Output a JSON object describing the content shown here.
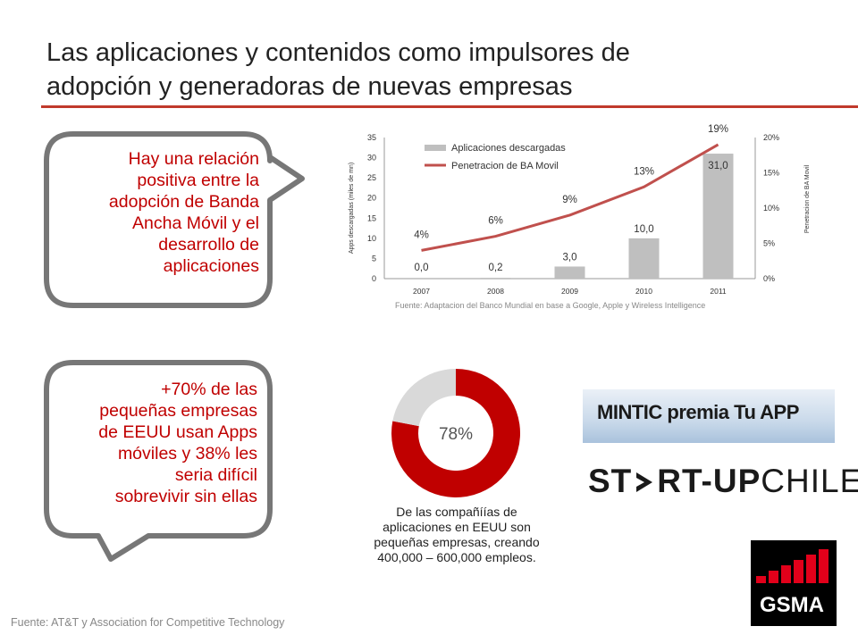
{
  "header": {
    "title_line1": "Las aplicaciones  y contenidos como impulsores de",
    "title_line2": "adopción  y generadoras  de nuevas empresas"
  },
  "bubble_top": {
    "lines": [
      "Hay una relación",
      "positiva entre la",
      "adopción de Banda",
      "Ancha Móvil y el",
      "desarrollo de",
      "aplicaciones"
    ]
  },
  "bubble_bottom": {
    "lines": [
      "+70% de las",
      "pequeñas empresas",
      "de EEUU usan Apps",
      "móviles y 38% les",
      "seria difícil",
      "sobrevivir sin ellas"
    ]
  },
  "chart_data": [
    {
      "type": "bar",
      "categories": [
        "2007",
        "2008",
        "2009",
        "2010",
        "2011"
      ],
      "series": [
        {
          "name": "Aplicaciones descargadas",
          "type": "bar",
          "axis": "left",
          "values": [
            0.0,
            0.2,
            3.0,
            10.0,
            31.0
          ],
          "labels": [
            "0,0",
            "0,2",
            "3,0",
            "10,0",
            "31,0"
          ]
        },
        {
          "name": "Penetracion de BA Movil",
          "type": "line",
          "axis": "right",
          "values": [
            4,
            6,
            9,
            13,
            19
          ],
          "labels": [
            "4%",
            "6%",
            "9%",
            "13%",
            "19%"
          ]
        }
      ],
      "ylabel": "Apps descargadas  (miles de mn)",
      "y2label": "Penetracion de BA Movil",
      "ylim": [
        0,
        35
      ],
      "yticks": [
        "0",
        "5",
        "10",
        "15",
        "20",
        "25",
        "30",
        "35"
      ],
      "y2lim": [
        0,
        20
      ],
      "y2ticks": [
        "0%",
        "5%",
        "10%",
        "15%",
        "20%"
      ],
      "legend_position": "top-left",
      "grid": false,
      "colors": {
        "bar": "#bfbfbf",
        "line": "#c0504d"
      }
    },
    {
      "type": "pie",
      "donut": true,
      "values": [
        78,
        22
      ],
      "center_label": "78%",
      "colors": [
        "#c00000",
        "#d9d9d9"
      ]
    }
  ],
  "chart_source": "Fuente: Adaptacion del Banco Mundial en base a Google, Apple y Wireless Intelligence",
  "donut_caption": {
    "lines": [
      "De las compañíías de",
      "aplicaciones en EEUU son",
      "pequeñas empresas, creando",
      "400,000 – 600,000 empleos."
    ]
  },
  "logos": {
    "mintic": "MINTIC premia Tu APP",
    "startup_part1": "ST",
    "startup_part2": "RT-UP",
    "startup_part3": "CHILE",
    "gsma": "GSMA"
  },
  "footer": "Fuente: AT&T y Association for Competitive Technology",
  "colors": {
    "accent": "#c00000",
    "bubble_border": "#777777",
    "rule": "#c0392b"
  }
}
